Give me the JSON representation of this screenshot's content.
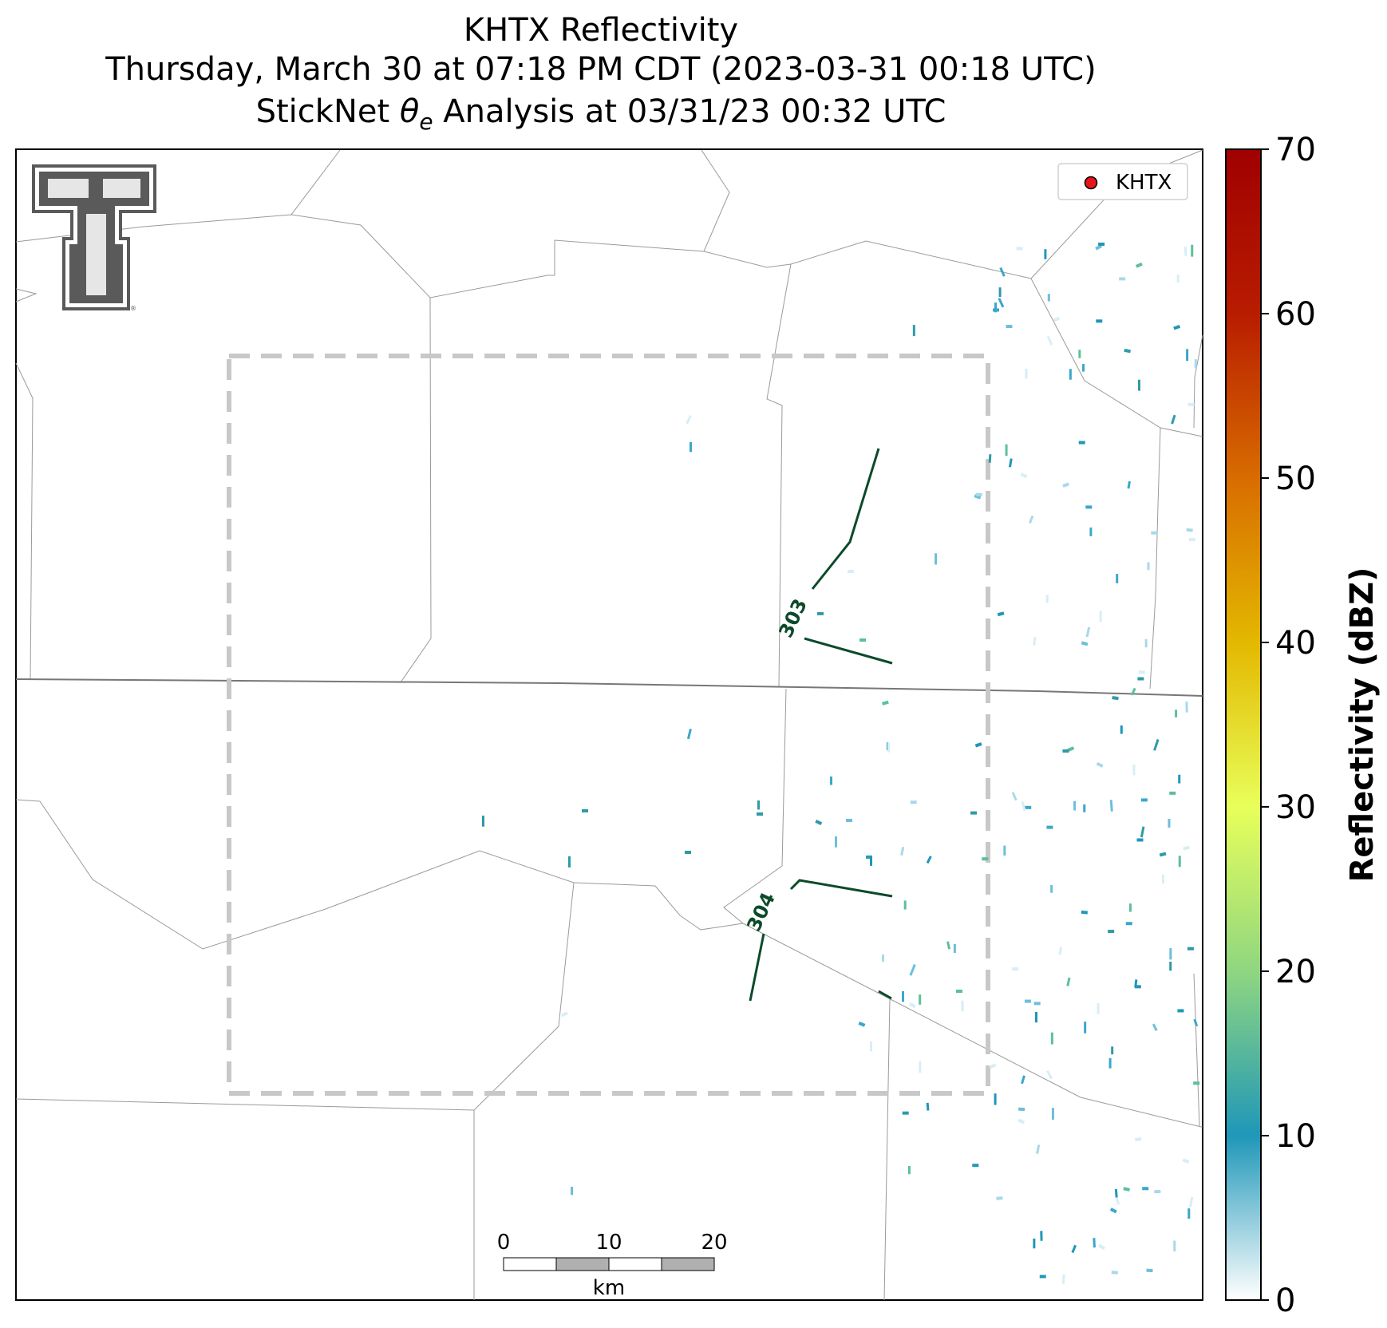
{
  "title": {
    "line1": "KHTX Reflectivity",
    "line2": "Thursday, March 30 at 07:18 PM CDT (2023-03-31 00:18 UTC)",
    "line3_prefix": "StickNet ",
    "line3_symbol": "θ",
    "line3_subscript": "e",
    "line3_suffix": " Analysis at 03/31/23 00:32 UTC"
  },
  "legend": {
    "label": "KHTX",
    "marker_color": "#e8141c"
  },
  "contours": [
    {
      "label": "303",
      "color": "#0b4a2a"
    },
    {
      "label": "304",
      "color": "#0b4a2a"
    }
  ],
  "scale_bar": {
    "ticks": [
      "0",
      "10",
      "20"
    ],
    "unit": "km"
  },
  "colorbar": {
    "label": "Reflectivity (dBZ)",
    "ticks": [
      "0",
      "10",
      "20",
      "30",
      "40",
      "50",
      "60",
      "70"
    ],
    "range": [
      0,
      70
    ],
    "colors": [
      "#ffffff",
      "#1f97b8",
      "#8fd680",
      "#e8ff5a",
      "#e3b800",
      "#d86c00",
      "#b81c00",
      "#a00000"
    ]
  },
  "logo": {
    "name": "Texas Tech Double T",
    "color": "#5a5a5a"
  }
}
